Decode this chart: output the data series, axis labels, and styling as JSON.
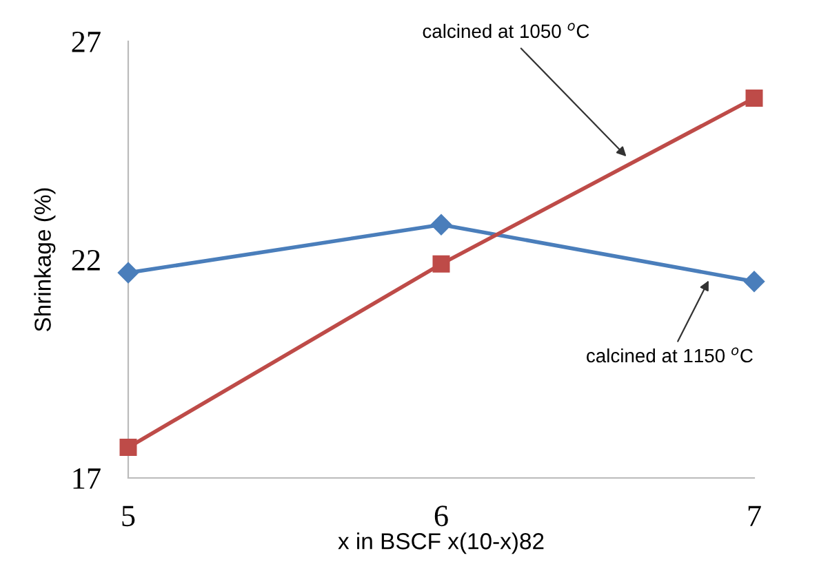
{
  "chart_data": {
    "type": "line",
    "xlabel": "x in BSCF x(10-x)82",
    "ylabel": "Shrinkage (%)",
    "x": [
      5,
      6,
      7
    ],
    "series": [
      {
        "color": "#4a7ebb",
        "marker": "diamond",
        "values": [
          21.7,
          22.8,
          21.5
        ]
      },
      {
        "color": "#be4b48",
        "marker": "square",
        "values": [
          17.7,
          21.9,
          25.7
        ]
      }
    ],
    "xlim": [
      5,
      7
    ],
    "xticks": [
      5,
      6,
      7
    ],
    "ylim": [
      17,
      27
    ],
    "yticks": [
      17,
      22,
      27
    ],
    "grid": false,
    "legend": false,
    "annotations": [
      {
        "text": "calcined at 1050 $^{o}$C",
        "x": 6.6,
        "y": 24.3
      },
      {
        "text": "calcined at 1150 $^{o}$C",
        "x": 6.86,
        "y": 21.6
      }
    ]
  }
}
